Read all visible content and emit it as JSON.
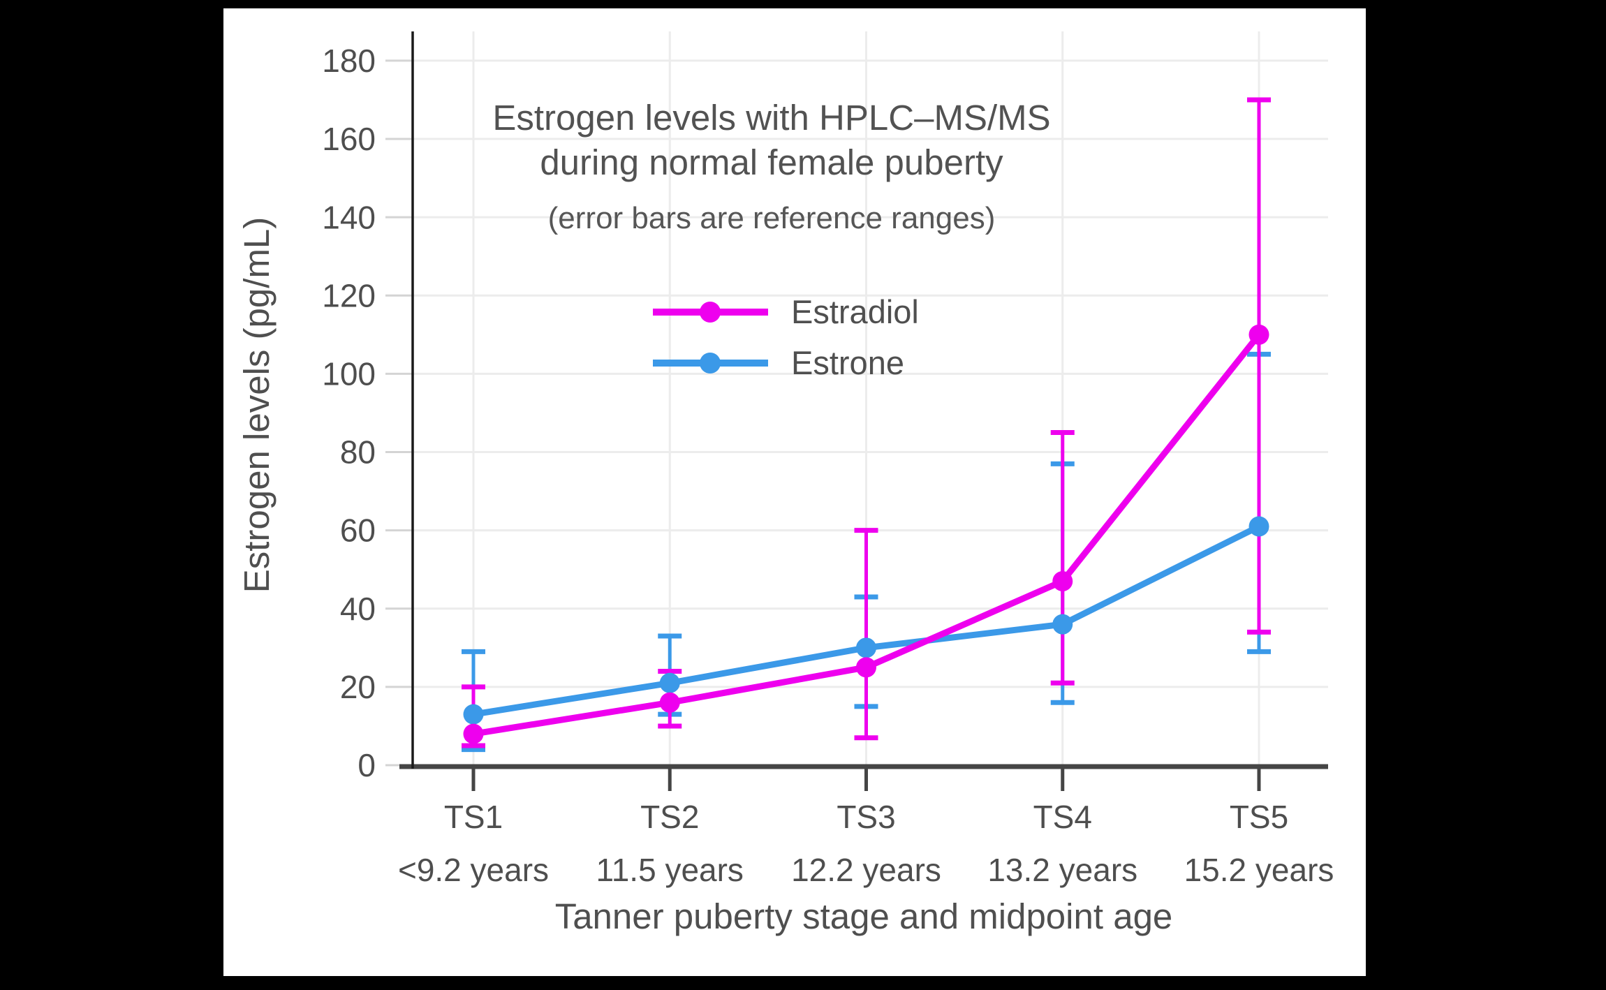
{
  "title": {
    "line1": "Estrogen levels with HPLC–MS/MS",
    "line2": "during normal female puberty",
    "subtitle": "(error bars are reference ranges)"
  },
  "palette": {
    "canvas_background": "#000000",
    "panel_background": "#ffffff",
    "gridline": "#ececec",
    "y_tick_stub": "#d4d4d4",
    "x_tick_stub": "#454545",
    "x_axis_line": "#454545",
    "y_axis_line": "#1a1a1a",
    "text": "#4f4f4f"
  },
  "chart_data": {
    "type": "line",
    "title": "Estrogen levels with HPLC–MS/MS during normal female puberty",
    "subtitle": "(error bars are reference ranges)",
    "xlabel": "Tanner puberty stage and midpoint age",
    "ylabel": "Estrogen levels (pg/mL)",
    "ylim": [
      0,
      187
    ],
    "yticks": [
      0,
      20,
      40,
      60,
      80,
      100,
      120,
      140,
      160,
      180
    ],
    "grid": true,
    "legend_position": "upper-left-inside",
    "error_bars": "reference ranges",
    "categories": [
      "TS1",
      "TS2",
      "TS3",
      "TS4",
      "TS5"
    ],
    "category_sublabels": [
      "<9.2 years",
      "11.5 years",
      "12.2 years",
      "13.2 years",
      "15.2 years"
    ],
    "series": [
      {
        "name": "Estradiol",
        "color": "#ee00ee",
        "values": [
          8,
          16,
          25,
          47,
          110
        ],
        "error_low": [
          5,
          10,
          7,
          21,
          34
        ],
        "error_high": [
          20,
          24,
          60,
          85,
          170
        ]
      },
      {
        "name": "Estrone",
        "color": "#3b99e8",
        "values": [
          13,
          21,
          30,
          36,
          61
        ],
        "error_low": [
          4,
          13,
          15,
          16,
          29
        ],
        "error_high": [
          29,
          33,
          43,
          77,
          105
        ]
      }
    ]
  }
}
